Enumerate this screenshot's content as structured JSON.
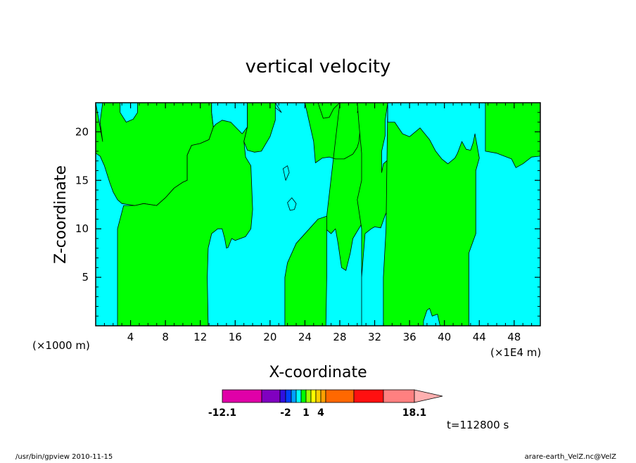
{
  "chart_data": {
    "type": "contour",
    "title": "vertical velocity",
    "xlabel": "X-coordinate",
    "ylabel": "Z-coordinate",
    "x_unit_left": "(×1000 m)",
    "x_unit_right": "(×1E4 m)",
    "xlim": [
      0,
      51
    ],
    "ylim": [
      0,
      23
    ],
    "x_ticks": [
      "4",
      "8",
      "12",
      "16",
      "20",
      "24",
      "28",
      "32",
      "36",
      "40",
      "44",
      "48"
    ],
    "x_tick_values": [
      4,
      8,
      12,
      16,
      20,
      24,
      28,
      32,
      36,
      40,
      44,
      48
    ],
    "y_ticks": [
      "5",
      "10",
      "15",
      "20"
    ],
    "y_tick_values": [
      5,
      10,
      15,
      20
    ],
    "field_colors": {
      "positive": "#00ff00",
      "negative": "#00ffff"
    },
    "regions": [
      {
        "sign": "positive",
        "points": [
          [
            0,
            23
          ],
          [
            0,
            17.8
          ],
          [
            0.5,
            17.5
          ],
          [
            1,
            16.5
          ],
          [
            1.6,
            14.8
          ],
          [
            2,
            13.8
          ],
          [
            2.5,
            13
          ],
          [
            3,
            12.6
          ],
          [
            4.5,
            12.4
          ],
          [
            5.5,
            12.6
          ],
          [
            7,
            12.4
          ],
          [
            8,
            13.2
          ],
          [
            9,
            14.2
          ],
          [
            10,
            14.8
          ],
          [
            10.5,
            15
          ],
          [
            10.5,
            17.6
          ],
          [
            11,
            18.6
          ],
          [
            12,
            18.8
          ],
          [
            13,
            19.2
          ],
          [
            13.5,
            20.5
          ],
          [
            13.3,
            22
          ],
          [
            13.3,
            23
          ],
          [
            4.8,
            23
          ],
          [
            4.8,
            22
          ],
          [
            4.3,
            21.3
          ],
          [
            3.5,
            21
          ],
          [
            2.8,
            22
          ],
          [
            2.8,
            23
          ],
          [
            0.8,
            23
          ],
          [
            0.5,
            21
          ],
          [
            0.8,
            19
          ]
        ]
      },
      {
        "sign": "positive",
        "points": [
          [
            2.5,
            0
          ],
          [
            2.5,
            10
          ],
          [
            3.2,
            12.4
          ],
          [
            4.5,
            12.4
          ],
          [
            5.5,
            12.6
          ],
          [
            7,
            12.4
          ],
          [
            8,
            13.2
          ],
          [
            9,
            14.2
          ],
          [
            10,
            14.8
          ],
          [
            10.5,
            15
          ],
          [
            10.5,
            17.6
          ],
          [
            11,
            18.6
          ],
          [
            12,
            18.8
          ],
          [
            13,
            19.2
          ],
          [
            13.5,
            20.5
          ],
          [
            13.3,
            22
          ],
          [
            13.3,
            23
          ],
          [
            17.4,
            23
          ],
          [
            17.4,
            20.5
          ],
          [
            17,
            19
          ],
          [
            17.2,
            17.4
          ],
          [
            17.8,
            16.5
          ],
          [
            18,
            12
          ],
          [
            17.8,
            10
          ],
          [
            17.2,
            9.2
          ],
          [
            16,
            8.8
          ],
          [
            15.6,
            9
          ],
          [
            15.2,
            8.1
          ],
          [
            15,
            8
          ],
          [
            14.8,
            9
          ],
          [
            14.5,
            10
          ],
          [
            14,
            10
          ],
          [
            13.3,
            9.5
          ],
          [
            12.9,
            8
          ],
          [
            12.8,
            5
          ],
          [
            12.9,
            0
          ]
        ]
      },
      {
        "sign": "negative",
        "points": [
          [
            13.3,
            23
          ],
          [
            17.4,
            23
          ],
          [
            17.4,
            20.5
          ],
          [
            16.8,
            19.8
          ],
          [
            15.5,
            21
          ],
          [
            14.5,
            21.2
          ],
          [
            13.8,
            20.8
          ],
          [
            13.5,
            20.5
          ],
          [
            13.3,
            22
          ]
        ]
      },
      {
        "sign": "negative",
        "points": [
          [
            20.6,
            23
          ],
          [
            20.6,
            22.5
          ],
          [
            21.3,
            22
          ]
        ]
      },
      {
        "sign": "positive",
        "points": [
          [
            17.4,
            23
          ],
          [
            17.4,
            20.5
          ],
          [
            17,
            19
          ],
          [
            17.4,
            18.1
          ],
          [
            18.2,
            17.9
          ],
          [
            19,
            18
          ],
          [
            20,
            19.5
          ],
          [
            20.6,
            21.2
          ],
          [
            20.6,
            23
          ]
        ]
      },
      {
        "sign": "positive",
        "points": [
          [
            21.7,
            0
          ],
          [
            21.7,
            5
          ],
          [
            22,
            6.5
          ],
          [
            23,
            8.5
          ],
          [
            24.5,
            10
          ],
          [
            25.5,
            11
          ],
          [
            26.5,
            11.3
          ],
          [
            26.5,
            9.9
          ],
          [
            26.5,
            5
          ],
          [
            26.4,
            0
          ]
        ]
      },
      {
        "sign": "positive",
        "points": [
          [
            26.5,
            11.3
          ],
          [
            26.5,
            9.9
          ],
          [
            27,
            9.5
          ],
          [
            27.5,
            10
          ],
          [
            27.8,
            8.5
          ],
          [
            28.2,
            6
          ],
          [
            28.7,
            5.7
          ],
          [
            29.2,
            7.5
          ],
          [
            29.5,
            9
          ],
          [
            30.5,
            10.5
          ],
          [
            31.5,
            12.1
          ],
          [
            32.3,
            12.6
          ],
          [
            32.2,
            14.5
          ],
          [
            32.3,
            16
          ],
          [
            32.5,
            17.4
          ],
          [
            32.3,
            19.5
          ],
          [
            31,
            22
          ],
          [
            30,
            22
          ],
          [
            30.5,
            23
          ],
          [
            24,
            23
          ],
          [
            24.5,
            21
          ],
          [
            25,
            19
          ],
          [
            25.2,
            16.8
          ],
          [
            26,
            17.3
          ],
          [
            26.8,
            17.4
          ],
          [
            27.5,
            17.2
          ],
          [
            28.5,
            17.2
          ],
          [
            29.5,
            17.7
          ],
          [
            30,
            18.4
          ],
          [
            30.2,
            19
          ],
          [
            30.4,
            21
          ],
          [
            30.5,
            23
          ],
          [
            25.5,
            23
          ],
          [
            26.1,
            21.4
          ],
          [
            26.8,
            21.5
          ],
          [
            27.3,
            22.4
          ],
          [
            28,
            23
          ]
        ]
      },
      {
        "sign": "positive",
        "points": [
          [
            30.5,
            0
          ],
          [
            30.5,
            5
          ],
          [
            30.9,
            9.5
          ],
          [
            31.6,
            10
          ],
          [
            32,
            10.2
          ],
          [
            32.7,
            10.1
          ],
          [
            33.2,
            11.4
          ],
          [
            33.8,
            12.6
          ],
          [
            33.9,
            13.8
          ],
          [
            33.8,
            16
          ],
          [
            33.5,
            17.1
          ],
          [
            33,
            16.7
          ],
          [
            32.8,
            15.8
          ],
          [
            32.8,
            18
          ],
          [
            33.2,
            19.6
          ],
          [
            33.2,
            21.2
          ],
          [
            33.5,
            23
          ],
          [
            30,
            23
          ],
          [
            30.2,
            20.8
          ],
          [
            30.5,
            17.8
          ],
          [
            30.5,
            15
          ],
          [
            30,
            13
          ],
          [
            30.5,
            10
          ]
        ]
      },
      {
        "sign": "positive",
        "points": [
          [
            33.5,
            23
          ],
          [
            33.5,
            21
          ],
          [
            34.3,
            21
          ],
          [
            35.2,
            19.8
          ],
          [
            36,
            19.5
          ],
          [
            37.2,
            20.4
          ],
          [
            38.3,
            19.2
          ],
          [
            39,
            18
          ],
          [
            39.7,
            17.2
          ],
          [
            40.4,
            16.7
          ],
          [
            41.2,
            17.3
          ],
          [
            41.5,
            17.8
          ],
          [
            42,
            19
          ],
          [
            42.5,
            18.2
          ],
          [
            43,
            18.1
          ],
          [
            43.3,
            18.9
          ],
          [
            43.5,
            19.8
          ],
          [
            44,
            17.3
          ],
          [
            43.6,
            16
          ],
          [
            43.6,
            9.5
          ],
          [
            42.8,
            7.5
          ],
          [
            42.8,
            0
          ],
          [
            39.5,
            0
          ],
          [
            39.2,
            1.2
          ],
          [
            38.6,
            1
          ],
          [
            38.3,
            1.8
          ],
          [
            38,
            1.6
          ],
          [
            37.6,
            0.5
          ],
          [
            37.6,
            0
          ],
          [
            33,
            0
          ],
          [
            33,
            5
          ],
          [
            33.3,
            10
          ]
        ]
      },
      {
        "sign": "positive",
        "points": [
          [
            44.7,
            23
          ],
          [
            44.7,
            18
          ],
          [
            46,
            17.8
          ],
          [
            47.7,
            17.2
          ],
          [
            48.2,
            16.3
          ],
          [
            49,
            16.7
          ],
          [
            50,
            17.4
          ],
          [
            51,
            17.5
          ],
          [
            51,
            23
          ]
        ]
      }
    ],
    "islands": [
      {
        "sign": "negative",
        "points": [
          [
            21.8,
            15
          ],
          [
            21.5,
            16.2
          ],
          [
            22,
            16.5
          ],
          [
            22.2,
            15.8
          ],
          [
            21.8,
            15
          ]
        ]
      },
      {
        "sign": "negative",
        "points": [
          [
            22.3,
            11.9
          ],
          [
            22,
            12.7
          ],
          [
            22.5,
            13.2
          ],
          [
            23,
            12.6
          ],
          [
            22.8,
            12
          ],
          [
            22.3,
            11.9
          ]
        ]
      }
    ],
    "colorbar": {
      "colors": [
        "#e000a8",
        "#8000c0",
        "#3010e0",
        "#0040ff",
        "#00a0ff",
        "#00ffff",
        "#00ff00",
        "#a0ff00",
        "#ffff00",
        "#ffd000",
        "#ffa000",
        "#ff6800",
        "#ff1010",
        "#ff8080",
        "#ffb0b0"
      ],
      "tick_labels": [
        "-12.1",
        "-2",
        "1",
        "4",
        "18.1"
      ]
    },
    "time_label": "t=112800 s"
  },
  "footer": {
    "left": "/usr/bin/gpview  2010-11-15",
    "right": "arare-earth_VelZ.nc@VelZ"
  }
}
